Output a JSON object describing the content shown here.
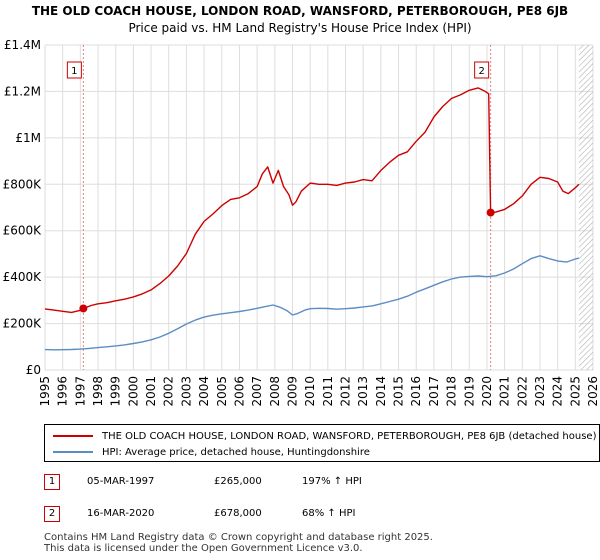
{
  "chart_data": {
    "type": "line",
    "title": "THE OLD COACH HOUSE, LONDON ROAD, WANSFORD, PETERBOROUGH, PE8 6JB",
    "subtitle": "Price paid vs. HM Land Registry's House Price Index (HPI)",
    "xlim": [
      1995,
      2026
    ],
    "ylim": [
      0,
      1400000
    ],
    "y_ticks": [
      {
        "value": 0,
        "label": "£0"
      },
      {
        "value": 200000,
        "label": "£200K"
      },
      {
        "value": 400000,
        "label": "£400K"
      },
      {
        "value": 600000,
        "label": "£600K"
      },
      {
        "value": 800000,
        "label": "£800K"
      },
      {
        "value": 1000000,
        "label": "£1M"
      },
      {
        "value": 1200000,
        "label": "£1.2M"
      },
      {
        "value": 1400000,
        "label": "£1.4M"
      }
    ],
    "x_ticks": [
      "1995",
      "1996",
      "1997",
      "1998",
      "1999",
      "2000",
      "2001",
      "2002",
      "2003",
      "2004",
      "2005",
      "2006",
      "2007",
      "2008",
      "2009",
      "2010",
      "2011",
      "2012",
      "2013",
      "2014",
      "2015",
      "2016",
      "2017",
      "2018",
      "2019",
      "2020",
      "2021",
      "2022",
      "2023",
      "2024",
      "2025",
      "2026"
    ],
    "grid": true,
    "series": [
      {
        "name": "THE OLD COACH HOUSE, LONDON ROAD, WANSFORD, PETERBOROUGH, PE8 6JB (detached house)",
        "color": "#cc0000",
        "x": [
          1995.0,
          1995.5,
          1996.0,
          1996.5,
          1997.0,
          1997.17,
          1997.6,
          1998.0,
          1998.5,
          1999.0,
          1999.5,
          2000.0,
          2000.5,
          2001.0,
          2001.5,
          2002.0,
          2002.5,
          2003.0,
          2003.5,
          2004.0,
          2004.5,
          2005.0,
          2005.5,
          2006.0,
          2006.5,
          2007.0,
          2007.3,
          2007.6,
          2007.9,
          2008.2,
          2008.5,
          2008.8,
          2009.0,
          2009.2,
          2009.5,
          2010.0,
          2010.5,
          2011.0,
          2011.5,
          2012.0,
          2012.5,
          2013.0,
          2013.5,
          2014.0,
          2014.5,
          2015.0,
          2015.5,
          2016.0,
          2016.5,
          2017.0,
          2017.5,
          2018.0,
          2018.5,
          2019.0,
          2019.5,
          2019.9,
          2020.0,
          2020.1,
          2020.21,
          2020.5,
          2021.0,
          2021.5,
          2022.0,
          2022.5,
          2023.0,
          2023.5,
          2024.0,
          2024.3,
          2024.6,
          2025.0,
          2025.2
        ],
        "values": [
          263000,
          258000,
          253000,
          248000,
          257000,
          265000,
          278000,
          285000,
          290000,
          298000,
          305000,
          315000,
          328000,
          345000,
          372000,
          405000,
          448000,
          502000,
          585000,
          640000,
          672000,
          708000,
          735000,
          742000,
          760000,
          790000,
          845000,
          875000,
          805000,
          860000,
          790000,
          755000,
          710000,
          725000,
          770000,
          805000,
          800000,
          800000,
          795000,
          805000,
          810000,
          820000,
          815000,
          860000,
          895000,
          925000,
          940000,
          985000,
          1025000,
          1090000,
          1135000,
          1170000,
          1185000,
          1205000,
          1215000,
          1200000,
          1195000,
          1190000,
          678000,
          680000,
          692000,
          716000,
          750000,
          800000,
          830000,
          825000,
          810000,
          770000,
          760000,
          785000,
          800000
        ]
      },
      {
        "name": "HPI: Average price, detached house, Huntingdonshire",
        "color": "#5b8dc5",
        "x": [
          1995.0,
          1995.5,
          1996.0,
          1996.5,
          1997.0,
          1997.5,
          1998.0,
          1998.5,
          1999.0,
          1999.5,
          2000.0,
          2000.5,
          2001.0,
          2001.5,
          2002.0,
          2002.5,
          2003.0,
          2003.5,
          2004.0,
          2004.5,
          2005.0,
          2005.5,
          2006.0,
          2006.5,
          2007.0,
          2007.5,
          2007.9,
          2008.3,
          2008.7,
          2009.0,
          2009.3,
          2009.7,
          2010.0,
          2010.5,
          2011.0,
          2011.5,
          2012.0,
          2012.5,
          2013.0,
          2013.5,
          2014.0,
          2014.5,
          2015.0,
          2015.5,
          2016.0,
          2016.5,
          2017.0,
          2017.5,
          2018.0,
          2018.5,
          2019.0,
          2019.5,
          2020.0,
          2020.5,
          2021.0,
          2021.5,
          2022.0,
          2022.5,
          2023.0,
          2023.5,
          2024.0,
          2024.5,
          2025.0,
          2025.2
        ],
        "values": [
          88000,
          87000,
          87500,
          88500,
          90000,
          93000,
          96500,
          100000,
          104000,
          108000,
          114000,
          121000,
          130000,
          142000,
          158000,
          178000,
          198000,
          215000,
          228000,
          236000,
          242000,
          247000,
          252000,
          258000,
          266000,
          274000,
          280000,
          270000,
          255000,
          237000,
          244000,
          258000,
          264000,
          266000,
          265000,
          262000,
          264000,
          267000,
          272000,
          276000,
          285000,
          295000,
          305000,
          318000,
          335000,
          350000,
          365000,
          380000,
          392000,
          400000,
          403000,
          405000,
          402000,
          406000,
          418000,
          435000,
          458000,
          480000,
          492000,
          480000,
          470000,
          465000,
          478000,
          482000
        ]
      }
    ],
    "sales": [
      {
        "id": "1",
        "x": 1997.17,
        "price": 265000
      },
      {
        "id": "2",
        "x": 2020.21,
        "price": 678000
      }
    ],
    "future_hatch_start": 2025.2
  },
  "legend": {
    "property_label": "THE OLD COACH HOUSE, LONDON ROAD, WANSFORD, PETERBOROUGH, PE8 6JB (detached house)",
    "hpi_label": "HPI: Average price, detached house, Huntingdonshire",
    "property_color": "#cc0000",
    "hpi_color": "#5b8dc5"
  },
  "sales_table": [
    {
      "num": "1",
      "date": "05-MAR-1997",
      "price": "£265,000",
      "hpi": "197% ↑ HPI"
    },
    {
      "num": "2",
      "date": "16-MAR-2020",
      "price": "£678,000",
      "hpi": "68% ↑ HPI"
    }
  ],
  "footer": {
    "line1": "Contains HM Land Registry data © Crown copyright and database right 2025.",
    "line2": "This data is licensed under the Open Government Licence v3.0."
  }
}
